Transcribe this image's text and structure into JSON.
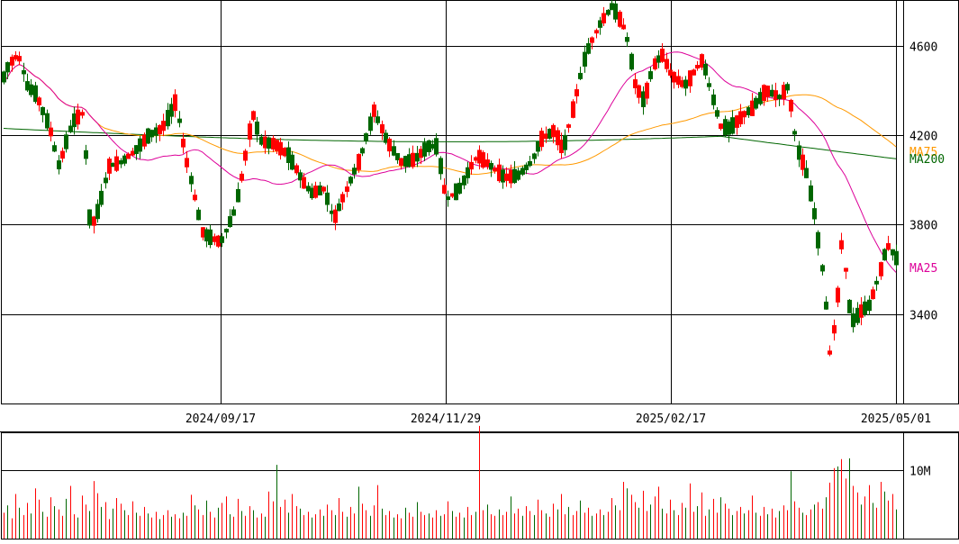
{
  "chart_data": {
    "type": "candlestick",
    "price_panel": {
      "ylim": [
        3000,
        4800
      ],
      "y_ticks": [
        "4600",
        "4200",
        "3800",
        "3400"
      ],
      "x_ticks": [
        "2024/09/17",
        "2024/11/29",
        "2025/02/17",
        "2025/05/01"
      ],
      "ma_labels": [
        {
          "key": "ma75",
          "text": "MA75",
          "color": "#ff9900"
        },
        {
          "key": "ma200",
          "text": "MA200",
          "color": "#006600"
        },
        {
          "key": "ma25",
          "text": "MA25",
          "color": "#dd0099"
        }
      ],
      "up_color": "#ff0000",
      "down_color": "#006600"
    },
    "volume_panel": {
      "ylim": [
        0,
        13000000
      ],
      "y_ticks": [
        "10M"
      ],
      "series": [
        3.2,
        4.1,
        2.5,
        5.5,
        3.8,
        2.9,
        4.4,
        3.1,
        6.2,
        4.8,
        3.3,
        2.7,
        5.1,
        4.0,
        3.6,
        2.8,
        4.9,
        6.5,
        3.0,
        2.6,
        5.3,
        4.2,
        3.4,
        7.1,
        5.6,
        3.9,
        4.5,
        2.4,
        3.7,
        5.0,
        4.3,
        3.5,
        2.9,
        4.6,
        3.2,
        2.8,
        3.9,
        3.1,
        2.6,
        3.3,
        2.4,
        2.9,
        3.5,
        2.7,
        3.0,
        2.5,
        3.2,
        2.8,
        5.4,
        4.1,
        3.6,
        2.9,
        4.7,
        3.3,
        2.6,
        3.8,
        4.4,
        5.2,
        3.0,
        2.7,
        4.9,
        3.4,
        2.8,
        4.0,
        3.5,
        2.6,
        3.1,
        2.7,
        5.8,
        4.6,
        9.1,
        3.9,
        4.8,
        3.2,
        5.5,
        4.0,
        3.7,
        2.9,
        3.3,
        2.6,
        3.0,
        3.6,
        2.8,
        4.2,
        3.5,
        2.9,
        5.0,
        3.3,
        2.7,
        3.9,
        3.1,
        6.4,
        4.3,
        3.5,
        2.8,
        4.1,
        6.6,
        3.7,
        2.9,
        3.4,
        2.6,
        3.0,
        2.5,
        3.8,
        3.2,
        2.7,
        4.5,
        3.3,
        2.9,
        3.1,
        2.6,
        3.5,
        2.8,
        3.0,
        4.6,
        3.4,
        2.7,
        3.2,
        2.6,
        3.9,
        2.9,
        3.3,
        13.9,
        3.5,
        4.2,
        3.0,
        2.8,
        3.6,
        2.9,
        3.3,
        5.2,
        3.1,
        3.7,
        2.8,
        4.0,
        3.4,
        2.9,
        4.8,
        3.5,
        3.1,
        2.7,
        4.3,
        3.6,
        5.5,
        3.0,
        3.9,
        2.9,
        3.4,
        4.7,
        3.2,
        3.8,
        2.8,
        3.1,
        3.6,
        2.9,
        3.3,
        5.0,
        4.1,
        3.5,
        7.0,
        6.2,
        5.4,
        4.5,
        3.8,
        5.9,
        3.4,
        4.2,
        5.2,
        6.4,
        3.7,
        3.1,
        4.8,
        3.5,
        2.9,
        4.4,
        3.8,
        6.8,
        3.3,
        4.0,
        5.7,
        2.8,
        3.6,
        4.9,
        3.2,
        5.1,
        4.3,
        3.7,
        2.9,
        3.4,
        3.9,
        3.1,
        3.5,
        5.3,
        3.2,
        2.8,
        3.9,
        3.0,
        3.7,
        2.6,
        3.4,
        4.1,
        3.5,
        8.3,
        4.6,
        3.8,
        3.2,
        2.9,
        3.6,
        4.2,
        4.5,
        3.7,
        5.1,
        6.9,
        8.7,
        8.9,
        9.8,
        7.4,
        9.9,
        6.5,
        5.7,
        4.2,
        5.2,
        6.6,
        4.4,
        3.8,
        7.0,
        5.8,
        4.7,
        5.5,
        3.6
      ]
    }
  }
}
